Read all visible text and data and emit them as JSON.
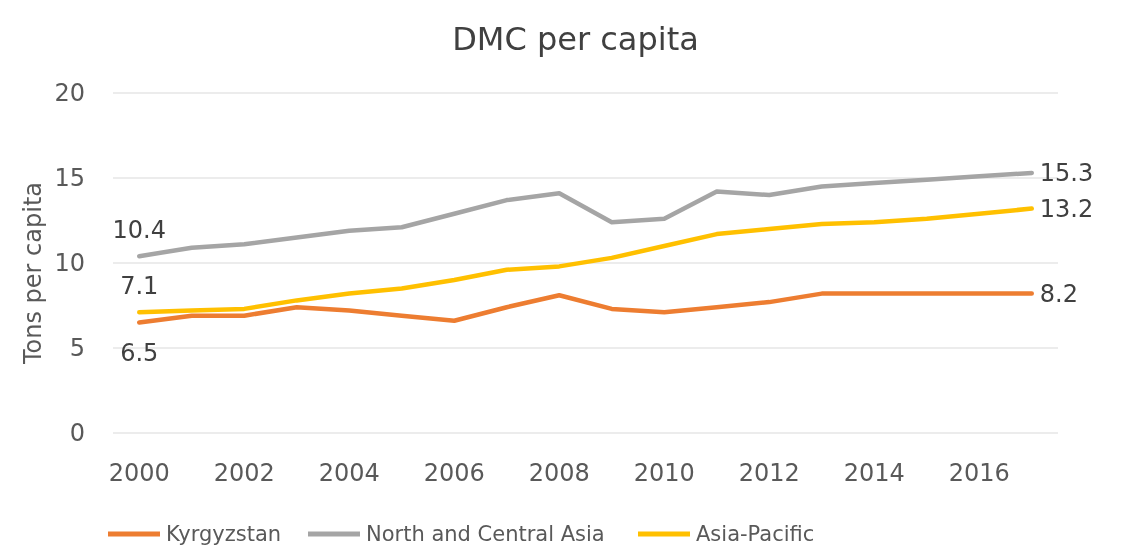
{
  "chart_data": {
    "type": "line",
    "title": "DMC per capita",
    "ylabel": "Tons per capita",
    "x": [
      2000,
      2001,
      2002,
      2003,
      2004,
      2005,
      2006,
      2007,
      2008,
      2009,
      2010,
      2011,
      2012,
      2013,
      2014,
      2015,
      2016,
      2017
    ],
    "xlim": [
      1999.5,
      2017.5
    ],
    "xticks": [
      2000,
      2002,
      2004,
      2006,
      2008,
      2010,
      2012,
      2014,
      2016
    ],
    "ylim": [
      0,
      20
    ],
    "yticks": [
      0,
      5,
      10,
      15,
      20
    ],
    "grid": "y",
    "legend": "bottom",
    "marker": "none",
    "line_style": "solid",
    "series": [
      {
        "name": "Kyrgyzstan",
        "color": "#ed7d31",
        "values": [
          6.5,
          6.9,
          6.9,
          7.4,
          7.2,
          6.9,
          6.6,
          7.4,
          8.1,
          7.3,
          7.1,
          7.4,
          7.7,
          8.2,
          8.2,
          8.2,
          8.2,
          8.2
        ],
        "value_labels": [
          "6.5",
          null,
          null,
          null,
          null,
          null,
          null,
          null,
          null,
          null,
          null,
          null,
          null,
          null,
          null,
          null,
          null,
          "8.2"
        ]
      },
      {
        "name": "North and Central Asia",
        "color": "#a5a5a5",
        "values": [
          10.4,
          10.9,
          11.1,
          11.5,
          11.9,
          12.1,
          12.9,
          13.7,
          14.1,
          12.4,
          12.6,
          14.2,
          14.0,
          14.5,
          14.7,
          14.9,
          15.1,
          15.3
        ],
        "value_labels": [
          "10.4",
          null,
          null,
          null,
          null,
          null,
          null,
          null,
          null,
          null,
          null,
          null,
          null,
          null,
          null,
          null,
          null,
          "15.3"
        ]
      },
      {
        "name": "Asia-Pacific",
        "color": "#ffc000",
        "values": [
          7.1,
          7.2,
          7.3,
          7.8,
          8.2,
          8.5,
          9.0,
          9.6,
          9.8,
          10.3,
          11.0,
          11.7,
          12.0,
          12.3,
          12.4,
          12.6,
          12.9,
          13.2
        ],
        "value_labels": [
          "7.1",
          null,
          null,
          null,
          null,
          null,
          null,
          null,
          null,
          null,
          null,
          null,
          null,
          null,
          null,
          null,
          null,
          "13.2"
        ]
      }
    ]
  }
}
